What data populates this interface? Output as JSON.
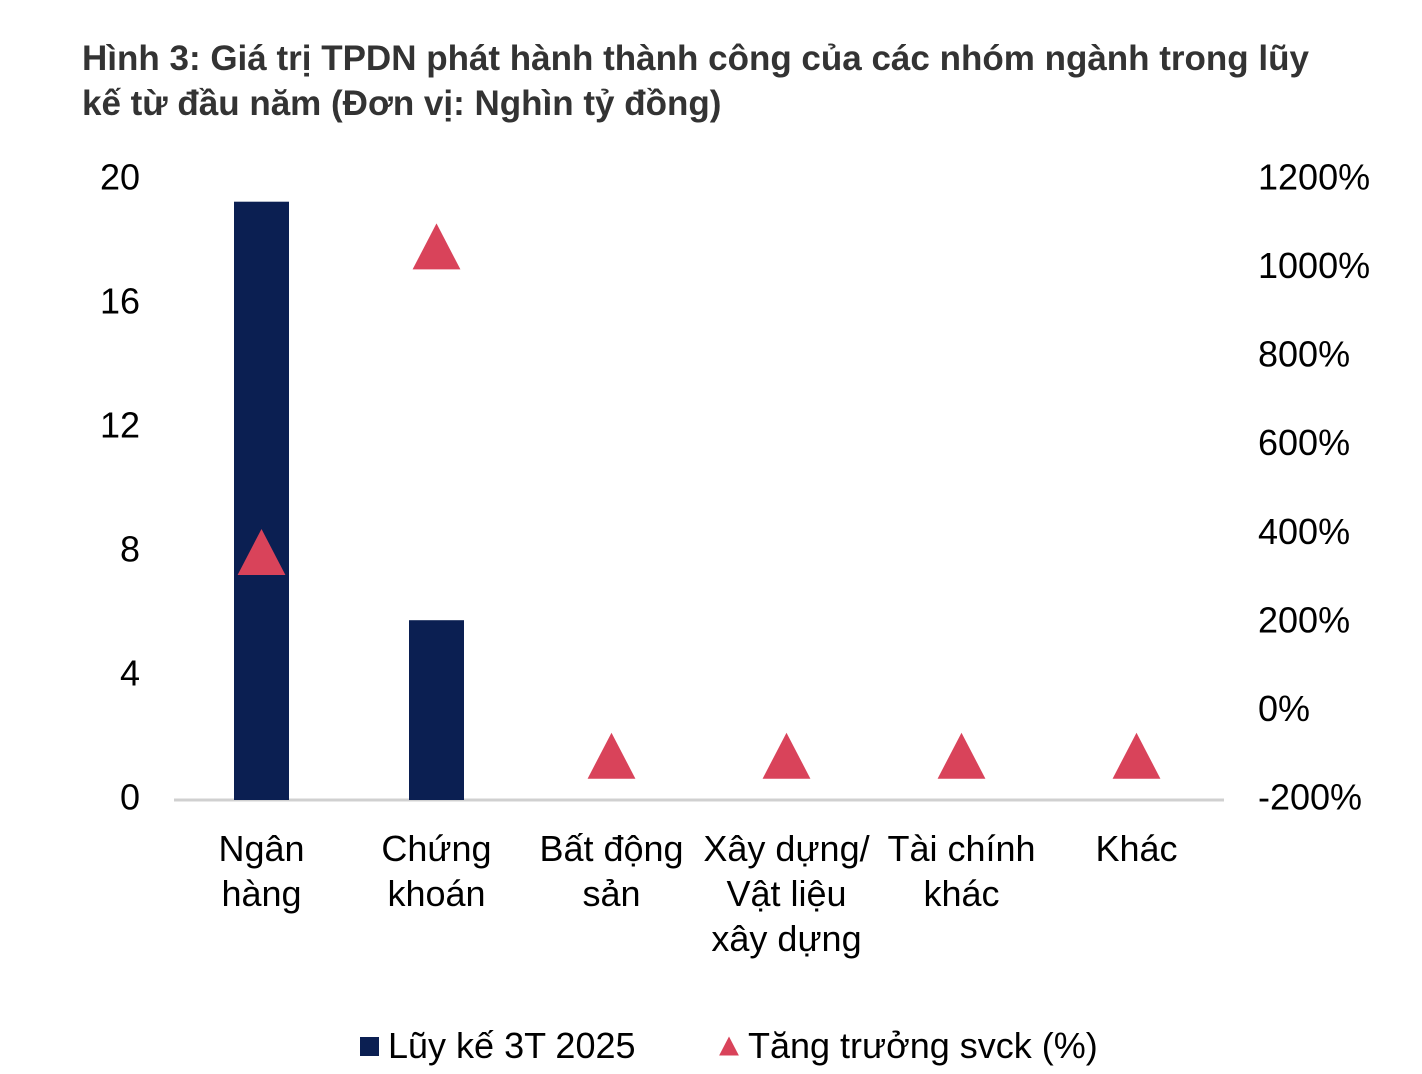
{
  "chart_data": {
    "type": "bar",
    "title": "Hình 3: Giá trị TPDN phát hành thành công của các nhóm ngành trong lũy kế từ đầu năm (Đơn vị: Nghìn tỷ đồng)",
    "categories": [
      "Ngân hàng",
      "Chứng khoán",
      "Bất động sản",
      "Xây dựng/ Vật liệu xây dựng",
      "Tài chính khác",
      "Khác"
    ],
    "series": [
      {
        "name": "Lũy kế 3T 2025",
        "color": "#0b1f52",
        "type": "bar",
        "values": [
          19.3,
          5.8,
          0,
          0,
          0,
          0
        ]
      },
      {
        "name": "Tăng trưởng svck (%)",
        "color": "#d9435a",
        "type": "scatter",
        "marker": "triangle",
        "axis": "y2",
        "values": [
          360,
          1050,
          -100,
          -100,
          -100,
          -100
        ]
      }
    ],
    "ylim": [
      0,
      20
    ],
    "yticks": [
      0,
      4,
      8,
      12,
      16,
      20
    ],
    "y2lim": [
      -200,
      1200
    ],
    "y2ticks": [
      {
        "value": -200,
        "label": "-200%"
      },
      {
        "value": 0,
        "label": "0%"
      },
      {
        "value": 200,
        "label": "200%"
      },
      {
        "value": 400,
        "label": "400%"
      },
      {
        "value": 600,
        "label": "600%"
      },
      {
        "value": 800,
        "label": "800%"
      },
      {
        "value": 1000,
        "label": "1000%"
      },
      {
        "value": 1200,
        "label": "1200%"
      }
    ],
    "legend": "bottom",
    "grid": false
  }
}
